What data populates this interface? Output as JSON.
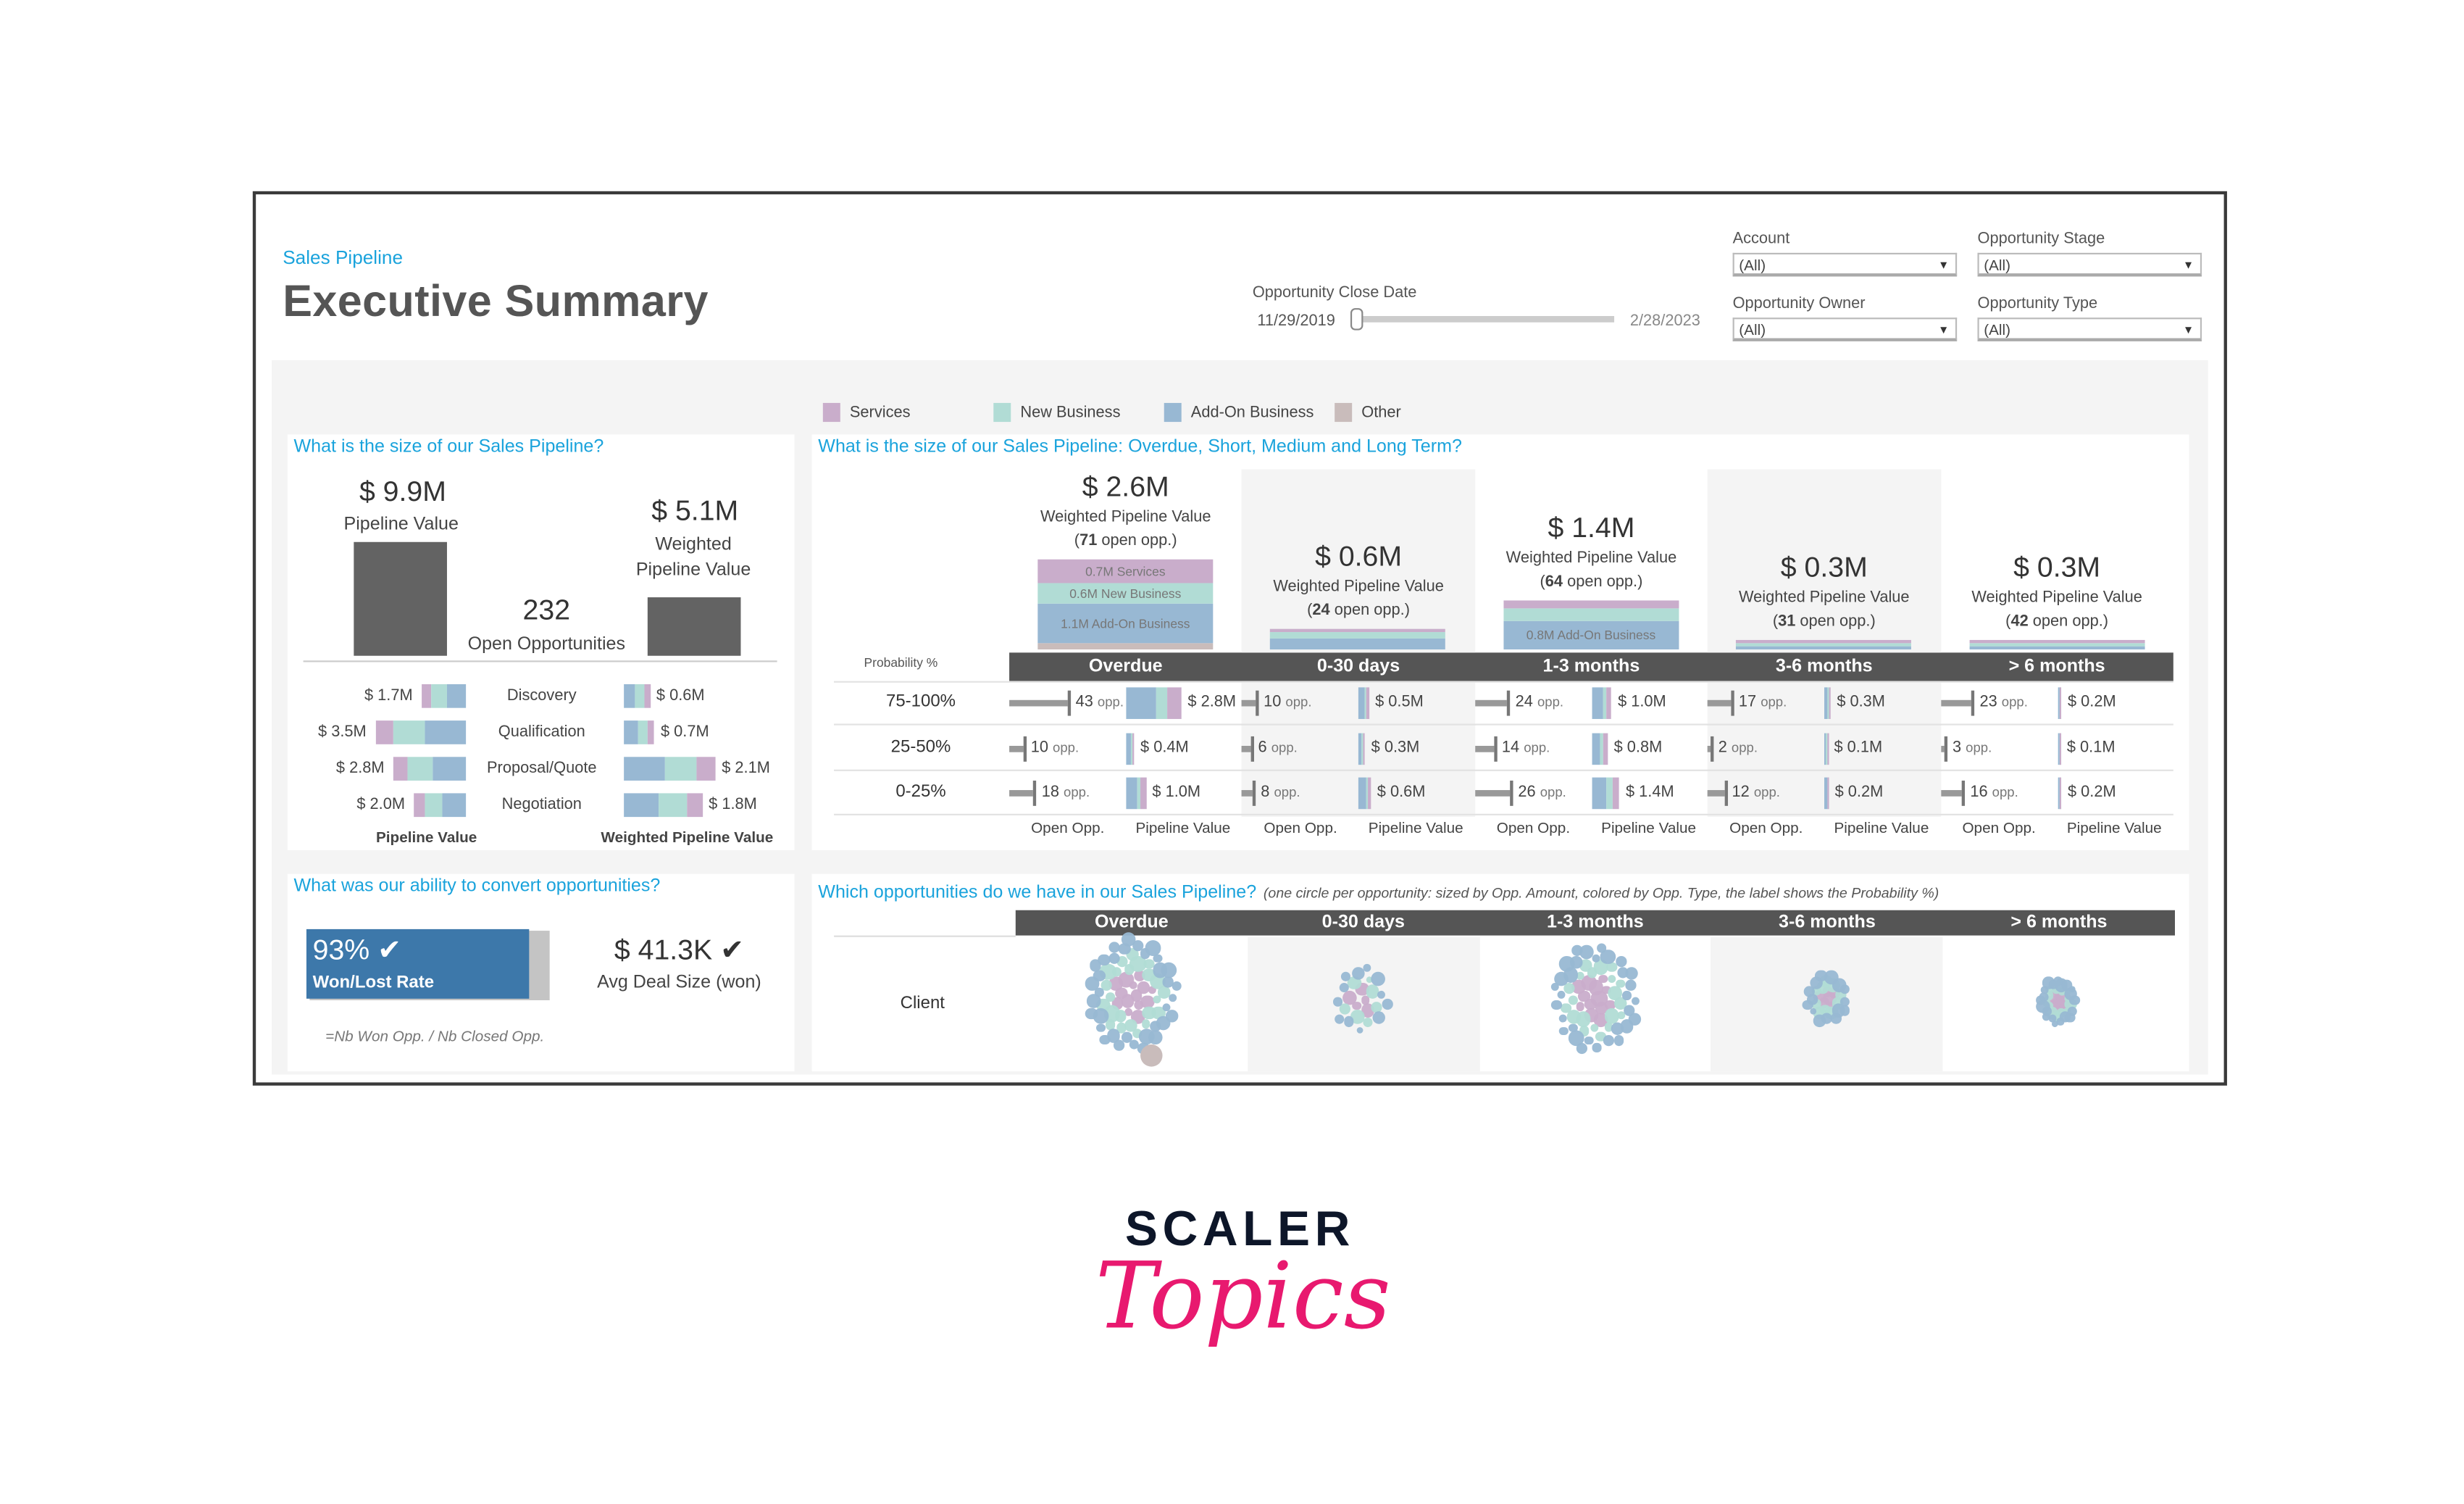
{
  "header": {
    "breadcrumb": "Sales Pipeline",
    "title": "Executive Summary",
    "date_filter": {
      "label": "Opportunity Close Date",
      "start": "11/29/2019",
      "end": "2/28/2023",
      "handle_position": 0.0
    },
    "filters": [
      {
        "label": "Account",
        "value": "(All)"
      },
      {
        "label": "Opportunity Stage",
        "value": "(All)"
      },
      {
        "label": "Opportunity Owner",
        "value": "(All)"
      },
      {
        "label": "Opportunity Type",
        "value": "(All)"
      }
    ]
  },
  "colors": {
    "services": "#c9adcb",
    "new_business": "#b1dcd5",
    "add_on": "#98b8d3",
    "other": "#c9bcbb",
    "accent": "#1aa3dc",
    "header_bar": "#555555"
  },
  "legend": [
    "Services",
    "New Business",
    "Add-On Business",
    "Other"
  ],
  "size_panel": {
    "title": "What is the size of our Sales Pipeline?",
    "pipeline_value": "$ 9.9M",
    "pipeline_value_label": "Pipeline Value",
    "open_opps": "232",
    "open_opps_label": "Open Opportunities",
    "weighted_value": "$ 5.1M",
    "weighted_label_1": "Weighted",
    "weighted_label_2": "Pipeline Value",
    "pipeline_value_num": 9.9,
    "weighted_value_num": 5.1,
    "stages": [
      {
        "name": "Discovery",
        "pv": "$ 1.7M",
        "pv_num": 1.7,
        "wpv": "$ 0.6M",
        "wpv_num": 0.6
      },
      {
        "name": "Qualification",
        "pv": "$ 3.5M",
        "pv_num": 3.5,
        "wpv": "$ 0.7M",
        "wpv_num": 0.7
      },
      {
        "name": "Proposal/Quote",
        "pv": "$ 2.8M",
        "pv_num": 2.8,
        "wpv": "$ 2.1M",
        "wpv_num": 2.1
      },
      {
        "name": "Negotiation",
        "pv": "$ 2.0M",
        "pv_num": 2.0,
        "wpv": "$ 1.8M",
        "wpv_num": 1.8
      }
    ],
    "footer_left": "Pipeline Value",
    "footer_right": "Weighted Pipeline Value"
  },
  "term_panel": {
    "title": "What is the size of our Sales Pipeline: Overdue, Short, Medium and Long Term?",
    "prob_label": "Probability %",
    "rows": [
      "75-100%",
      "25-50%",
      "0-25%"
    ],
    "weighted_label": "Weighted Pipeline Value",
    "open_opp_suffix": "open opp.",
    "opp_suffix": "opp.",
    "sub_headers": [
      "Open Opp.",
      "Pipeline Value"
    ],
    "columns": [
      {
        "name": "Overdue",
        "weighted": "$ 2.6M",
        "open": "71",
        "stack": [
          {
            "type": "other",
            "v": 0.2
          },
          {
            "type": "add_on",
            "v": 1.1,
            "label": "1.1M  Add-On Business"
          },
          {
            "type": "new_business",
            "v": 0.6,
            "label": "0.6M  New Business"
          },
          {
            "type": "services",
            "v": 0.7,
            "label": "0.7M  Services"
          }
        ],
        "opps": [
          43,
          10,
          18
        ],
        "values": [
          "$ 2.8M",
          "$ 0.4M",
          "$ 1.0M"
        ],
        "values_num": [
          2.8,
          0.4,
          1.0
        ]
      },
      {
        "name": "0-30 days",
        "weighted": "$ 0.6M",
        "open": "24",
        "stack": [
          {
            "type": "add_on",
            "v": 0.3
          },
          {
            "type": "new_business",
            "v": 0.2
          },
          {
            "type": "services",
            "v": 0.1
          }
        ],
        "opps": [
          10,
          6,
          8
        ],
        "values": [
          "$ 0.5M",
          "$ 0.3M",
          "$ 0.6M"
        ],
        "values_num": [
          0.5,
          0.3,
          0.6
        ]
      },
      {
        "name": "1-3 months",
        "weighted": "$ 1.4M",
        "open": "64",
        "stack": [
          {
            "type": "add_on",
            "v": 0.8,
            "label": "0.8M  Add-On Business"
          },
          {
            "type": "new_business",
            "v": 0.4
          },
          {
            "type": "services",
            "v": 0.2
          }
        ],
        "opps": [
          24,
          14,
          26
        ],
        "values": [
          "$ 1.0M",
          "$ 0.8M",
          "$ 1.4M"
        ],
        "values_num": [
          1.0,
          0.8,
          1.4
        ]
      },
      {
        "name": "3-6 months",
        "weighted": "$ 0.3M",
        "open": "31",
        "stack": [
          {
            "type": "add_on",
            "v": 0.1
          },
          {
            "type": "new_business",
            "v": 0.07
          },
          {
            "type": "services",
            "v": 0.1
          }
        ],
        "opps": [
          17,
          2,
          12
        ],
        "values": [
          "$ 0.3M",
          "$ 0.1M",
          "$ 0.2M"
        ],
        "values_num": [
          0.3,
          0.1,
          0.2
        ]
      },
      {
        "name": "> 6 months",
        "weighted": "$ 0.3M",
        "open": "42",
        "stack": [
          {
            "type": "add_on",
            "v": 0.1
          },
          {
            "type": "new_business",
            "v": 0.07
          },
          {
            "type": "services",
            "v": 0.1
          }
        ],
        "opps": [
          23,
          3,
          16
        ],
        "values": [
          "$ 0.2M",
          "$ 0.1M",
          "$ 0.2M"
        ],
        "values_num": [
          0.2,
          0.1,
          0.2
        ]
      }
    ]
  },
  "convert_panel": {
    "title": "What was our ability to convert opportunities?",
    "win_rate": "93% ✔",
    "win_rate_num": 0.93,
    "win_rate_label": "Won/Lost Rate",
    "avg_deal": "$ 41.3K ✔",
    "avg_deal_label": "Avg Deal Size (won)",
    "formula": "=Nb Won Opp. / Nb Closed Opp."
  },
  "opps_panel": {
    "title": "Which opportunities do we have in our Sales Pipeline?",
    "note": "(one circle per opportunity: sized by Opp. Amount, colored by Opp. Type, the label shows the Probability %)",
    "row_label": "Client",
    "columns": [
      "Overdue",
      "0-30 days",
      "1-3 months",
      "3-6 months",
      "> 6 months"
    ],
    "counts": [
      71,
      24,
      64,
      31,
      42
    ]
  },
  "logo": {
    "line1": "SCALER",
    "line2": "Topics"
  }
}
